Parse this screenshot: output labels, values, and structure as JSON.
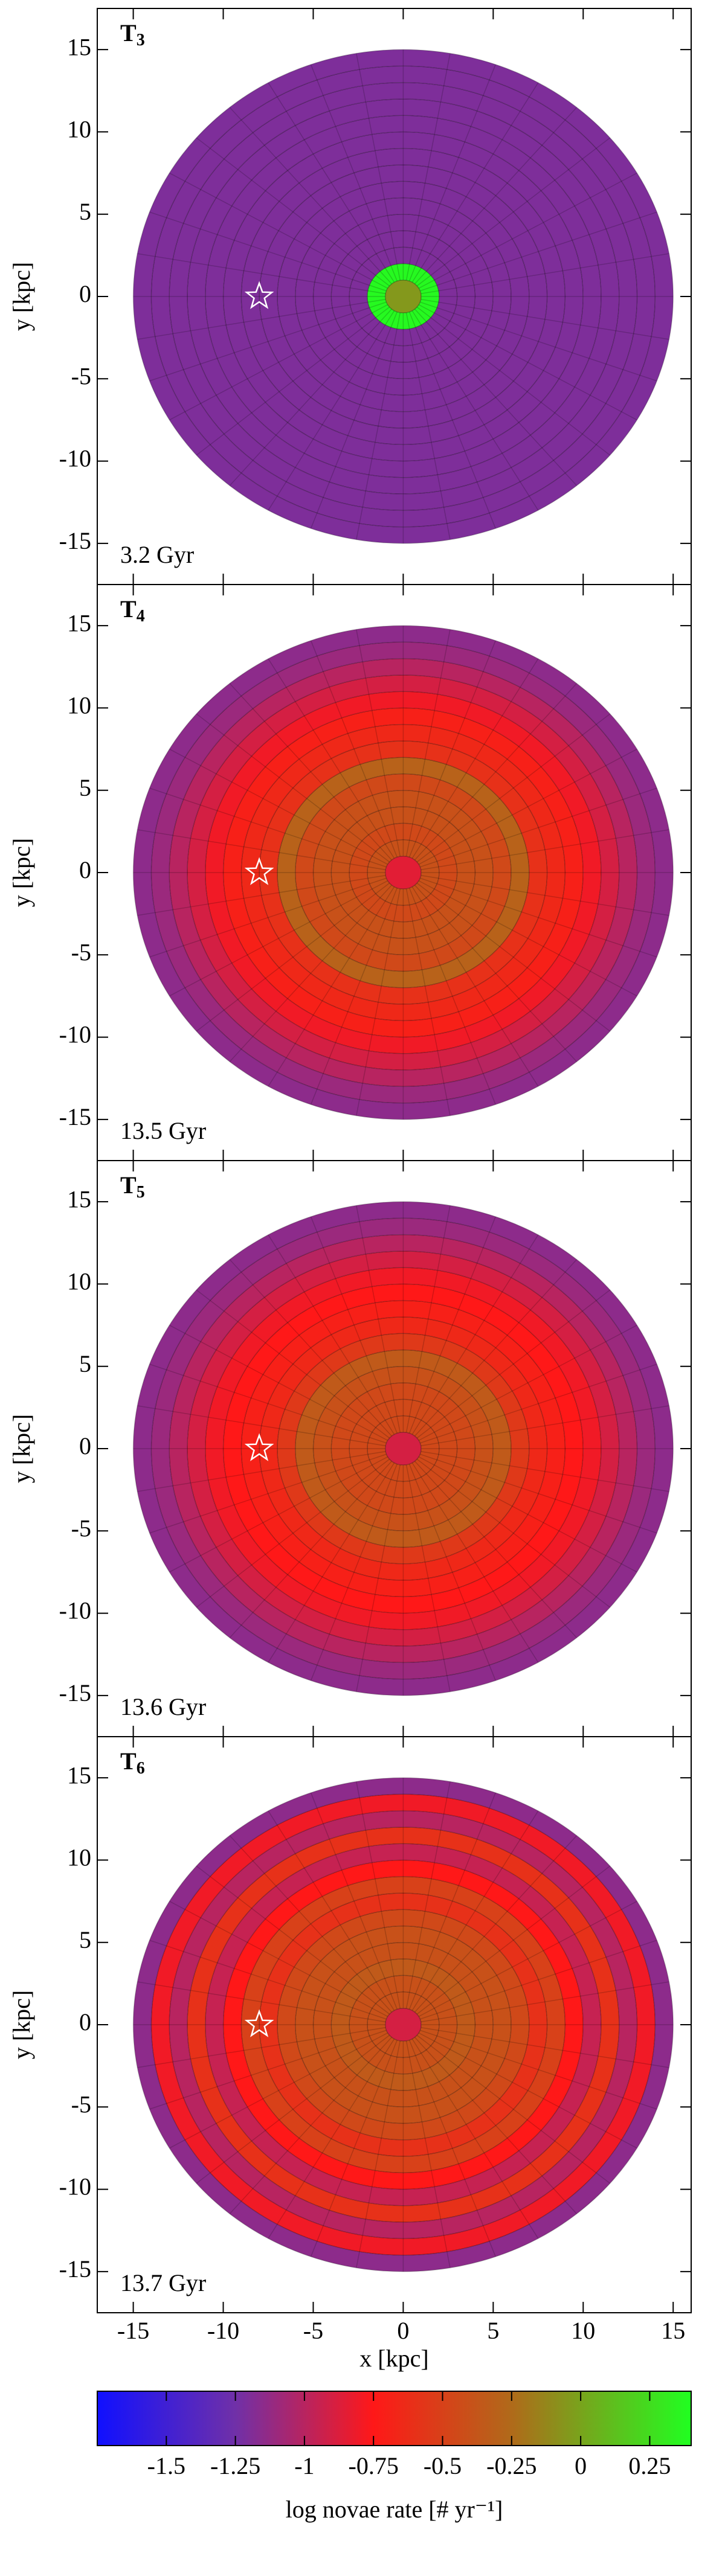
{
  "chart_data": [
    {
      "type": "polar_heatmap",
      "title": "T",
      "subscript": "3",
      "annotation": "3.2 Gyr",
      "ylabel": "y [kpc]",
      "xlim": [
        -17,
        16
      ],
      "ylim": [
        -17.5,
        17.5
      ],
      "xticks": [
        -15,
        -10,
        -5,
        0,
        5,
        10,
        15
      ],
      "yticks": [
        -15,
        -10,
        -5,
        0,
        5,
        10,
        15
      ],
      "ring_edges": [
        0,
        1,
        2,
        3,
        4,
        5,
        6,
        7,
        8,
        9,
        10,
        11,
        12,
        13,
        14,
        15
      ],
      "ring_values": [
        -0.05,
        0.375,
        -1.2,
        -1.2,
        -1.2,
        -1.2,
        -1.2,
        -1.2,
        -1.2,
        -1.2,
        -1.2,
        -1.2,
        -1.2,
        -1.2,
        -1.2
      ],
      "star": {
        "x": -8,
        "y": 0
      }
    },
    {
      "type": "polar_heatmap",
      "title": "T",
      "subscript": "4",
      "annotation": "13.5 Gyr",
      "ylabel": "y [kpc]",
      "xlim": [
        -17,
        16
      ],
      "ylim": [
        -17.5,
        17.5
      ],
      "xticks": [
        -15,
        -10,
        -5,
        0,
        5,
        10,
        15
      ],
      "yticks": [
        -15,
        -10,
        -5,
        0,
        5,
        10,
        15
      ],
      "ring_edges": [
        0,
        1,
        2,
        3,
        4,
        5,
        6,
        7,
        8,
        9,
        10,
        11,
        12,
        13,
        14,
        15
      ],
      "ring_values": [
        -0.85,
        -0.4,
        -0.45,
        -0.4,
        -0.4,
        -0.45,
        -0.3,
        -0.6,
        -0.65,
        -0.7,
        -0.8,
        -0.9,
        -1.0,
        -1.1,
        -1.15
      ],
      "star": {
        "x": -8,
        "y": 0
      }
    },
    {
      "type": "polar_heatmap",
      "title": "T",
      "subscript": "5",
      "annotation": "13.6 Gyr",
      "ylabel": "y [kpc]",
      "xlim": [
        -17,
        16
      ],
      "ylim": [
        -17.5,
        17.5
      ],
      "xticks": [
        -15,
        -10,
        -5,
        0,
        5,
        10,
        15
      ],
      "yticks": [
        -15,
        -10,
        -5,
        0,
        5,
        10,
        15
      ],
      "ring_edges": [
        0,
        1,
        2,
        3,
        4,
        5,
        6,
        7,
        8,
        9,
        10,
        11,
        12,
        13,
        14,
        15
      ],
      "ring_values": [
        -0.9,
        -0.45,
        -0.45,
        -0.45,
        -0.4,
        -0.35,
        -0.55,
        -0.65,
        -0.7,
        -0.75,
        -0.8,
        -0.9,
        -1.0,
        -1.1,
        -1.15
      ],
      "star": {
        "x": -8,
        "y": 0
      }
    },
    {
      "type": "polar_heatmap",
      "title": "T",
      "subscript": "6",
      "annotation": "13.7 Gyr",
      "ylabel": "y [kpc]",
      "xlabel": "x [kpc]",
      "xlim": [
        -17,
        16
      ],
      "ylim": [
        -17.5,
        17.5
      ],
      "xticks": [
        -15,
        -10,
        -5,
        0,
        5,
        10,
        15
      ],
      "yticks": [
        -15,
        -10,
        -5,
        0,
        5,
        10,
        15
      ],
      "ring_edges": [
        0,
        1,
        2,
        3,
        4,
        5,
        6,
        7,
        8,
        9,
        10,
        11,
        12,
        13,
        14,
        15
      ],
      "ring_values": [
        -0.9,
        -0.4,
        -0.4,
        -0.35,
        -0.4,
        -0.4,
        -0.45,
        -0.6,
        -0.5,
        -0.75,
        -0.95,
        -0.6,
        -1.0,
        -0.8,
        -1.15
      ],
      "star": {
        "x": -8,
        "y": 0
      }
    },
    {
      "type": "colorbar",
      "title": "log novae rate [# yr⁻¹]",
      "clim": [
        -1.75,
        0.4
      ],
      "ticks": [
        -1.5,
        -1.25,
        -1,
        -0.75,
        -0.5,
        -0.25,
        0,
        0.25
      ],
      "stops": [
        {
          "value": -1.75,
          "color": "#1010ff"
        },
        {
          "value": -1.25,
          "color": "#7030a8"
        },
        {
          "value": -0.75,
          "color": "#ff1818"
        },
        {
          "value": -0.25,
          "color": "#b06a1a"
        },
        {
          "value": 0.4,
          "color": "#20ff20"
        }
      ]
    }
  ]
}
